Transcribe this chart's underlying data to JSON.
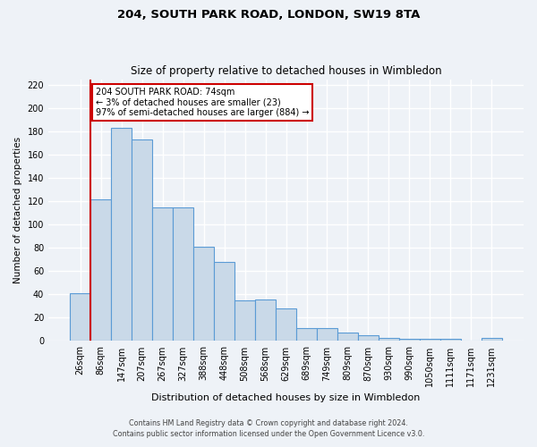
{
  "title1": "204, SOUTH PARK ROAD, LONDON, SW19 8TA",
  "title2": "Size of property relative to detached houses in Wimbledon",
  "xlabel": "Distribution of detached houses by size in Wimbledon",
  "ylabel": "Number of detached properties",
  "categories": [
    "26sqm",
    "86sqm",
    "147sqm",
    "207sqm",
    "267sqm",
    "327sqm",
    "388sqm",
    "448sqm",
    "508sqm",
    "568sqm",
    "629sqm",
    "689sqm",
    "749sqm",
    "809sqm",
    "870sqm",
    "930sqm",
    "990sqm",
    "1050sqm",
    "1111sqm",
    "1171sqm",
    "1231sqm"
  ],
  "values": [
    41,
    122,
    183,
    173,
    115,
    115,
    81,
    68,
    35,
    36,
    28,
    11,
    11,
    7,
    5,
    3,
    2,
    2,
    2,
    0,
    3
  ],
  "bar_color": "#c9d9e8",
  "bar_edge_color": "#5b9bd5",
  "property_line_color": "#cc0000",
  "annotation_text": "204 SOUTH PARK ROAD: 74sqm\n← 3% of detached houses are smaller (23)\n97% of semi-detached houses are larger (884) →",
  "annotation_box_color": "#ffffff",
  "annotation_box_edge": "#cc0000",
  "footer1": "Contains HM Land Registry data © Crown copyright and database right 2024.",
  "footer2": "Contains public sector information licensed under the Open Government Licence v3.0.",
  "ylim": [
    0,
    225
  ],
  "yticks": [
    0,
    20,
    40,
    60,
    80,
    100,
    120,
    140,
    160,
    180,
    200,
    220
  ],
  "bg_color": "#eef2f7",
  "grid_color": "#ffffff"
}
